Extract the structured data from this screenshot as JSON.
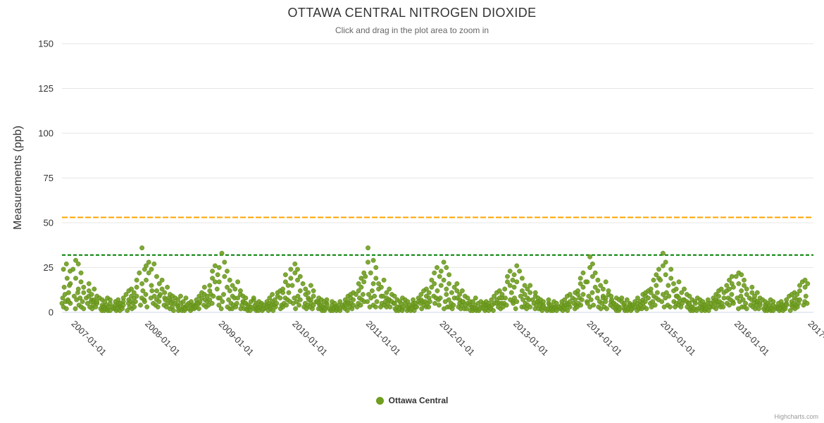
{
  "credits": "Highcharts.com",
  "chart_data": {
    "type": "scatter",
    "title": "OTTAWA CENTRAL NITROGEN DIOXIDE",
    "subtitle": "Click and drag in the plot area to zoom in",
    "ylabel": "Measurements (ppb)",
    "xlabel": "",
    "grid": "on",
    "legend": {
      "label": "Ottawa Central",
      "position": "bottom-center"
    },
    "series_color": "#6F9E20",
    "series_edge_color": "#5D8414",
    "grid_color": "#E6E6E6",
    "axis_line_color": "#CCD6EB",
    "ylim": [
      0,
      150
    ],
    "y_ticks": [
      0,
      25,
      50,
      75,
      100,
      125,
      150
    ],
    "x_range": [
      2006.88,
      2017.08
    ],
    "x_tick_years": [
      2007,
      2008,
      2009,
      2010,
      2011,
      2012,
      2013,
      2014,
      2015,
      2016,
      2017
    ],
    "x_tick_labels": [
      "2007-01-01",
      "2008-01-01",
      "2009-01-01",
      "2010-01-01",
      "2011-01-01",
      "2012-01-01",
      "2013-01-01",
      "2014-01-01",
      "2015-01-01",
      "2016-01-01",
      "2017-01-01"
    ],
    "plot_lines": [
      {
        "name": "orange-threshold",
        "value": 53,
        "color": "#FFA500",
        "dash": "Dash"
      },
      {
        "name": "green-threshold",
        "value": 32,
        "color": "#008000",
        "dash": "ShortDash"
      }
    ],
    "offsets": [
      0.01,
      0.03,
      0.05,
      0.07,
      0.09,
      0.11,
      0.13,
      0.15,
      0.17,
      0.19,
      0.21,
      0.23,
      0.25,
      0.27,
      0.29,
      0.31,
      0.33,
      0.35,
      0.37,
      0.39,
      0.41,
      0.43,
      0.45,
      0.47,
      0.49,
      0.51,
      0.53,
      0.55,
      0.57,
      0.59,
      0.61,
      0.63,
      0.65,
      0.67,
      0.69,
      0.71,
      0.73,
      0.75,
      0.77,
      0.79,
      0.81,
      0.83,
      0.85,
      0.87,
      0.89,
      0.91,
      0.93,
      0.95,
      0.97,
      0.99
    ],
    "years": [
      {
        "start": 2007,
        "upper": [
          16,
          24,
          29,
          19,
          27,
          13,
          22,
          17,
          11,
          14,
          8,
          12,
          16,
          7,
          10,
          13,
          6,
          9,
          5,
          8,
          4,
          7,
          3,
          6,
          8,
          2,
          5,
          7,
          3,
          6,
          2,
          4,
          7,
          3,
          5,
          8,
          6,
          10,
          7,
          12,
          9,
          13,
          8,
          11,
          14,
          18,
          22,
          16,
          36,
          24
        ],
        "lower": [
          5,
          9,
          2,
          7,
          11,
          4,
          8,
          3,
          6,
          2,
          5,
          9,
          3,
          6,
          2,
          4,
          7,
          3,
          6,
          2,
          1,
          3,
          1,
          2,
          4,
          1,
          3,
          1,
          2,
          4,
          1,
          2,
          5,
          1,
          3,
          2,
          4,
          1,
          5,
          3,
          6,
          2,
          5,
          3,
          6,
          9,
          4,
          8,
          12,
          7
        ]
      },
      {
        "start": 2008,
        "upper": [
          18,
          26,
          22,
          28,
          15,
          24,
          27,
          20,
          12,
          16,
          9,
          13,
          18,
          8,
          11,
          14,
          7,
          10,
          6,
          9,
          5,
          8,
          3,
          7,
          9,
          2,
          6,
          8,
          3,
          5,
          2,
          4,
          6,
          3,
          5,
          7,
          5,
          9,
          8,
          11,
          10,
          14,
          9,
          12,
          15,
          19,
          23,
          17,
          26,
          21
        ],
        "lower": [
          6,
          10,
          3,
          8,
          12,
          5,
          9,
          4,
          7,
          3,
          6,
          10,
          4,
          7,
          3,
          5,
          8,
          2,
          5,
          3,
          1,
          4,
          1,
          2,
          5,
          1,
          3,
          1,
          2,
          4,
          1,
          2,
          4,
          2,
          3,
          3,
          5,
          2,
          6,
          4,
          7,
          3,
          6,
          4,
          7,
          10,
          5,
          9,
          13,
          8
        ]
      },
      {
        "start": 2009,
        "upper": [
          17,
          25,
          33,
          20,
          28,
          14,
          23,
          18,
          12,
          15,
          9,
          13,
          17,
          8,
          10,
          12,
          6,
          9,
          5,
          8,
          4,
          6,
          3,
          7,
          8,
          2,
          5,
          6,
          3,
          5,
          2,
          4,
          6,
          3,
          5,
          8,
          6,
          10,
          7,
          11,
          9,
          12,
          8,
          11,
          13,
          17,
          21,
          15,
          24,
          19
        ],
        "lower": [
          4,
          8,
          2,
          6,
          10,
          3,
          7,
          2,
          5,
          2,
          4,
          8,
          3,
          5,
          2,
          4,
          6,
          2,
          5,
          2,
          1,
          3,
          1,
          2,
          4,
          1,
          2,
          1,
          3,
          4,
          1,
          2,
          4,
          1,
          3,
          2,
          4,
          1,
          4,
          3,
          5,
          2,
          4,
          3,
          5,
          8,
          4,
          7,
          11,
          6
        ]
      },
      {
        "start": 2010,
        "upper": [
          15,
          22,
          27,
          18,
          24,
          12,
          20,
          16,
          10,
          13,
          8,
          11,
          15,
          7,
          9,
          12,
          6,
          8,
          5,
          7,
          4,
          6,
          2,
          5,
          7,
          2,
          4,
          6,
          3,
          5,
          2,
          3,
          6,
          2,
          4,
          7,
          5,
          9,
          6,
          10,
          8,
          11,
          7,
          10,
          12,
          16,
          19,
          14,
          22,
          17
        ],
        "lower": [
          5,
          8,
          2,
          6,
          9,
          4,
          7,
          3,
          5,
          2,
          4,
          7,
          3,
          5,
          2,
          4,
          6,
          2,
          4,
          2,
          1,
          3,
          1,
          2,
          4,
          1,
          2,
          1,
          2,
          3,
          1,
          2,
          4,
          1,
          3,
          2,
          4,
          1,
          5,
          3,
          5,
          2,
          4,
          3,
          5,
          8,
          4,
          7,
          10,
          6
        ]
      },
      {
        "start": 2011,
        "upper": [
          20,
          28,
          36,
          22,
          29,
          16,
          25,
          19,
          13,
          16,
          9,
          14,
          18,
          8,
          11,
          13,
          7,
          10,
          6,
          9,
          5,
          7,
          3,
          6,
          8,
          2,
          5,
          7,
          3,
          6,
          2,
          4,
          7,
          3,
          5,
          8,
          6,
          10,
          7,
          12,
          9,
          13,
          8,
          11,
          14,
          18,
          22,
          16,
          25,
          20
        ],
        "lower": [
          6,
          10,
          3,
          8,
          12,
          4,
          9,
          3,
          6,
          3,
          5,
          9,
          4,
          6,
          3,
          5,
          7,
          3,
          5,
          2,
          1,
          3,
          1,
          2,
          5,
          1,
          3,
          1,
          2,
          4,
          1,
          2,
          5,
          1,
          3,
          3,
          5,
          2,
          6,
          4,
          6,
          3,
          5,
          3,
          6,
          9,
          5,
          8,
          12,
          7
        ]
      },
      {
        "start": 2012,
        "upper": [
          15,
          23,
          28,
          18,
          25,
          13,
          21,
          16,
          11,
          14,
          8,
          12,
          16,
          7,
          10,
          12,
          6,
          9,
          5,
          8,
          4,
          6,
          3,
          6,
          8,
          2,
          5,
          6,
          3,
          5,
          2,
          4,
          6,
          3,
          5,
          7,
          5,
          9,
          7,
          11,
          8,
          12,
          8,
          10,
          13,
          17,
          20,
          15,
          23,
          18
        ],
        "lower": [
          4,
          8,
          2,
          6,
          10,
          3,
          7,
          3,
          5,
          2,
          4,
          8,
          3,
          5,
          2,
          4,
          6,
          2,
          4,
          2,
          1,
          3,
          1,
          2,
          4,
          1,
          2,
          1,
          2,
          4,
          1,
          2,
          4,
          1,
          3,
          2,
          4,
          1,
          5,
          3,
          5,
          2,
          5,
          3,
          5,
          8,
          4,
          7,
          11,
          6
        ]
      },
      {
        "start": 2013,
        "upper": [
          14,
          21,
          26,
          17,
          23,
          12,
          19,
          15,
          10,
          13,
          8,
          11,
          15,
          7,
          9,
          11,
          6,
          8,
          5,
          7,
          4,
          6,
          2,
          5,
          7,
          2,
          4,
          6,
          3,
          5,
          2,
          3,
          6,
          2,
          4,
          7,
          5,
          9,
          6,
          10,
          8,
          11,
          7,
          10,
          12,
          16,
          19,
          14,
          22,
          17
        ],
        "lower": [
          5,
          8,
          2,
          6,
          9,
          3,
          7,
          3,
          5,
          2,
          4,
          7,
          3,
          5,
          2,
          4,
          6,
          2,
          4,
          2,
          1,
          3,
          1,
          2,
          4,
          1,
          2,
          1,
          2,
          3,
          1,
          2,
          4,
          1,
          3,
          2,
          4,
          1,
          4,
          3,
          5,
          2,
          4,
          3,
          5,
          8,
          4,
          7,
          10,
          6
        ]
      },
      {
        "start": 2014,
        "upper": [
          17,
          25,
          31,
          20,
          27,
          14,
          22,
          18,
          12,
          15,
          9,
          13,
          17,
          8,
          10,
          12,
          6,
          9,
          5,
          8,
          4,
          7,
          3,
          6,
          8,
          2,
          5,
          7,
          3,
          5,
          2,
          4,
          6,
          3,
          5,
          8,
          6,
          10,
          7,
          11,
          9,
          12,
          8,
          11,
          13,
          18,
          21,
          15,
          24,
          19
        ],
        "lower": [
          5,
          9,
          3,
          7,
          11,
          4,
          8,
          3,
          6,
          2,
          5,
          8,
          3,
          6,
          2,
          4,
          7,
          3,
          5,
          2,
          1,
          3,
          1,
          2,
          4,
          1,
          3,
          1,
          2,
          4,
          1,
          2,
          4,
          1,
          3,
          2,
          4,
          2,
          5,
          3,
          6,
          2,
          5,
          3,
          6,
          9,
          4,
          8,
          11,
          7
        ]
      },
      {
        "start": 2015,
        "upper": [
          18,
          26,
          33,
          21,
          28,
          15,
          24,
          19,
          12,
          16,
          9,
          13,
          17,
          8,
          11,
          13,
          7,
          10,
          6,
          9,
          5,
          7,
          3,
          6,
          8,
          2,
          5,
          7,
          3,
          6,
          2,
          4,
          7,
          3,
          5,
          8,
          6,
          10,
          7,
          12,
          9,
          13,
          8,
          11,
          12,
          15,
          18,
          13,
          20,
          16
        ],
        "lower": [
          6,
          10,
          3,
          8,
          11,
          4,
          9,
          3,
          6,
          3,
          5,
          9,
          4,
          6,
          3,
          5,
          7,
          3,
          5,
          2,
          1,
          3,
          1,
          2,
          5,
          1,
          3,
          1,
          2,
          4,
          1,
          2,
          5,
          1,
          3,
          3,
          5,
          2,
          6,
          4,
          6,
          3,
          5,
          3,
          5,
          8,
          4,
          7,
          10,
          6
        ]
      },
      {
        "start": 2016,
        "upper": [
          14,
          20,
          22,
          16,
          21,
          12,
          18,
          15,
          10,
          13,
          8,
          11,
          14,
          7,
          9,
          11,
          6,
          8,
          5,
          7,
          4,
          6,
          2,
          5,
          7,
          2,
          4,
          6,
          3,
          5,
          2,
          3,
          6,
          2,
          4,
          7,
          5,
          9,
          6,
          10,
          8,
          11,
          7,
          10,
          12,
          15,
          17,
          14,
          18,
          16
        ],
        "lower": [
          5,
          8,
          2,
          6,
          9,
          3,
          7,
          3,
          5,
          2,
          4,
          7,
          3,
          5,
          2,
          4,
          6,
          2,
          4,
          2,
          1,
          3,
          1,
          2,
          4,
          1,
          2,
          1,
          2,
          3,
          1,
          2,
          4,
          1,
          3,
          2,
          4,
          1,
          4,
          3,
          5,
          2,
          4,
          3,
          5,
          7,
          4,
          6,
          9,
          5
        ]
      }
    ],
    "extra_points": [
      [
        2006.88,
        5
      ],
      [
        2006.89,
        8
      ],
      [
        2006.9,
        3
      ],
      [
        2006.91,
        14
      ],
      [
        2006.92,
        10
      ],
      [
        2006.93,
        6
      ],
      [
        2006.94,
        2
      ],
      [
        2006.95,
        19
      ],
      [
        2006.96,
        7
      ],
      [
        2006.97,
        11
      ],
      [
        2006.98,
        15
      ],
      [
        2006.99,
        23
      ],
      [
        2006.9,
        24
      ],
      [
        2006.94,
        27
      ],
      [
        2006.97,
        6
      ]
    ]
  }
}
